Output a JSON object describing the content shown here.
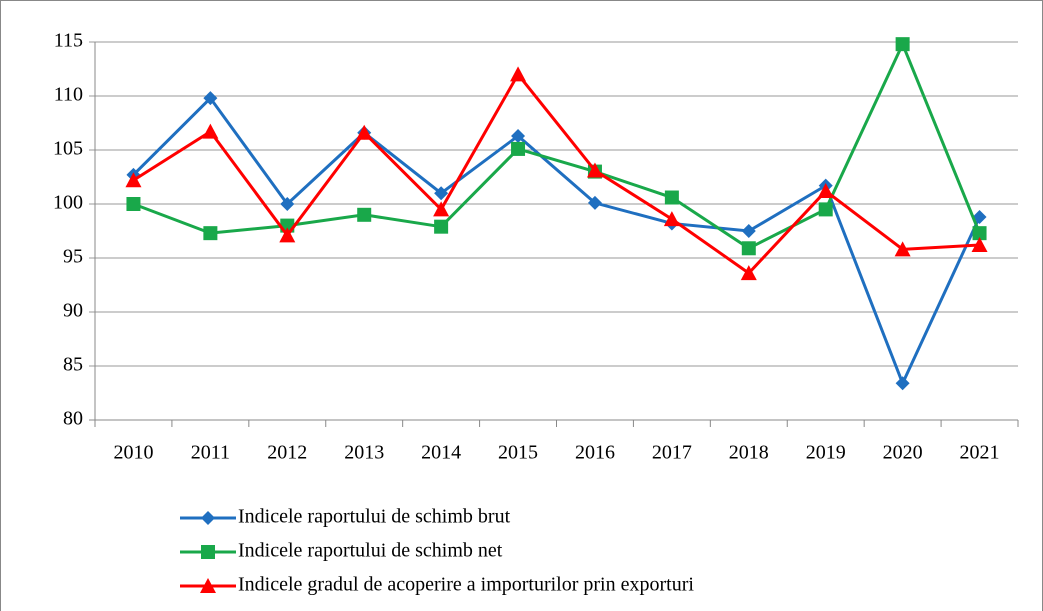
{
  "chart_data": {
    "type": "line",
    "categories": [
      "2010",
      "2011",
      "2012",
      "2013",
      "2014",
      "2015",
      "2016",
      "2017",
      "2018",
      "2019",
      "2020",
      "2021"
    ],
    "series": [
      {
        "name": "Indicele raportului de schimb brut",
        "color": "#1f6fc0",
        "marker": "diamond",
        "values": [
          102.7,
          109.8,
          100,
          106.6,
          101,
          106.3,
          100.1,
          98.2,
          97.5,
          101.7,
          83.4,
          98.8
        ]
      },
      {
        "name": "Indicele raportului de schimb net",
        "color": "#19a84a",
        "marker": "square",
        "values": [
          100,
          97.3,
          98,
          99,
          97.9,
          105.1,
          103,
          100.6,
          95.9,
          99.5,
          114.8,
          97.3
        ]
      },
      {
        "name": "Indicele gradul de acoperire a importurilor prin exporturi",
        "color": "#ff0000",
        "marker": "triangle",
        "values": [
          102.2,
          106.7,
          97.1,
          106.6,
          99.5,
          112,
          103.1,
          98.6,
          93.6,
          101.2,
          95.8,
          96.2
        ]
      }
    ],
    "ylim": [
      80,
      115
    ],
    "yticks": [
      80,
      85,
      90,
      95,
      100,
      105,
      110,
      115
    ],
    "grid": true,
    "legend": "bottom"
  }
}
